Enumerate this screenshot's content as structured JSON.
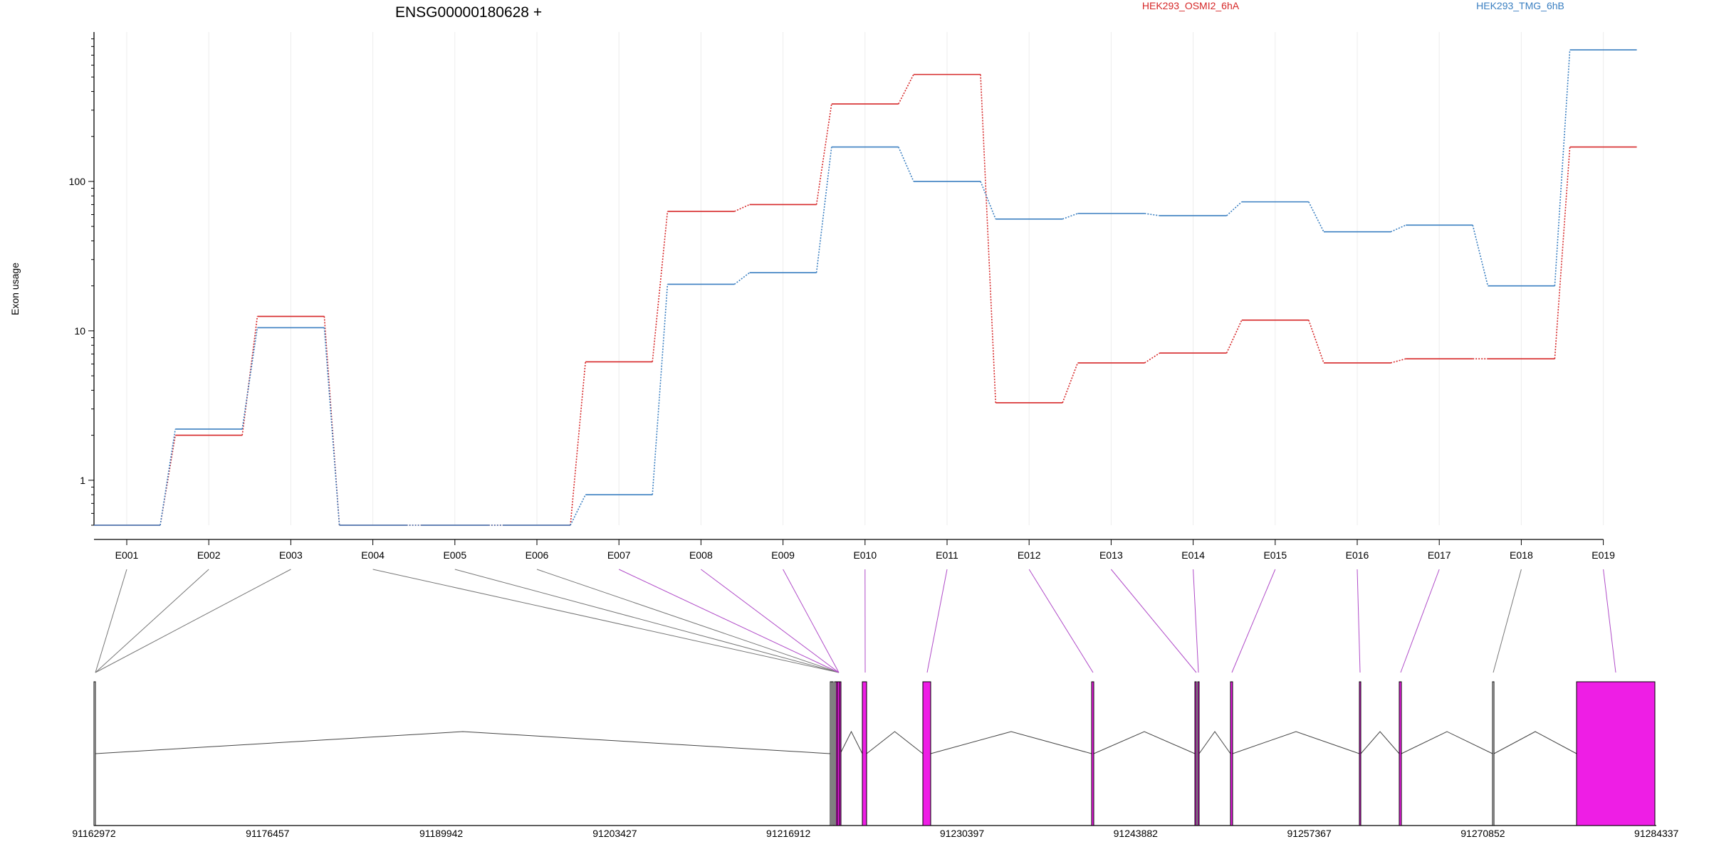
{
  "chart_data": {
    "type": "line",
    "title": "ENSG00000180628 +",
    "ylabel": "Exon usage",
    "yscale": "log",
    "ylim": [
      0.5,
      1000
    ],
    "yticks": [
      1,
      10,
      100
    ],
    "ytick_labels": [
      "1",
      "10",
      "100"
    ],
    "grid": true,
    "legend_position": "top",
    "categories": [
      "E001",
      "E002",
      "E003",
      "E004",
      "E005",
      "E006",
      "E007",
      "E008",
      "E009",
      "E010",
      "E011",
      "E012",
      "E013",
      "E014",
      "E015",
      "E016",
      "E017",
      "E018",
      "E019"
    ],
    "series": [
      {
        "name": "HEK293_OSMI2_6hA",
        "color": "#d62728",
        "values": [
          0.5,
          2.0,
          12.5,
          0.5,
          0.5,
          0.5,
          6.2,
          63,
          70,
          330,
          520,
          3.3,
          6.1,
          7.1,
          11.8,
          6.1,
          6.5,
          6.5,
          170
        ]
      },
      {
        "name": "HEK293_TMG_6hB",
        "color": "#3a7fc1",
        "values": [
          0.5,
          2.2,
          10.5,
          0.5,
          0.5,
          0.5,
          0.8,
          20.5,
          24.5,
          170,
          100,
          56,
          61,
          59,
          73,
          46,
          51,
          20,
          760
        ]
      }
    ],
    "gene_model": {
      "coordinate_labels": [
        "91162972",
        "91176457",
        "91189942",
        "91203427",
        "91216912",
        "91230397",
        "91243882",
        "91257367",
        "91270852",
        "91284337"
      ],
      "highlight_color": "#ee1ee5",
      "exon_highlighted": [
        false,
        false,
        false,
        false,
        false,
        false,
        true,
        true,
        true,
        true,
        true,
        true,
        true,
        true,
        true,
        true,
        true,
        false,
        true
      ]
    }
  }
}
